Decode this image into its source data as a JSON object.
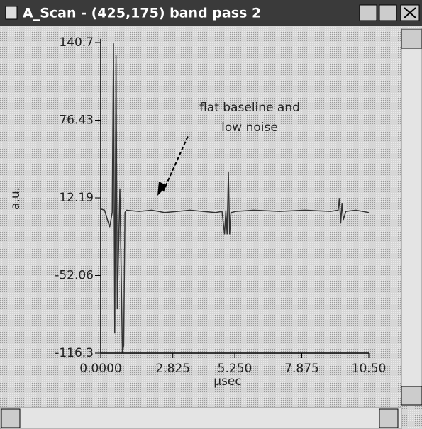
{
  "window": {
    "title": "A_Scan - (425,175)  band pass 2"
  },
  "chart_data": {
    "type": "line",
    "xlabel": "µsec",
    "ylabel": "a.u.",
    "annotation": [
      "flat baseline and",
      "low noise"
    ],
    "x": [
      0,
      0.15,
      0.25,
      0.35,
      0.45,
      0.5,
      0.55,
      0.6,
      0.65,
      0.75,
      0.85,
      0.9,
      0.95,
      1.0,
      1.5,
      2.0,
      2.5,
      3.0,
      3.5,
      4.0,
      4.5,
      4.75,
      4.85,
      4.9,
      4.95,
      5.0,
      5.05,
      5.1,
      5.3,
      6.0,
      7.0,
      8.0,
      9.0,
      9.3,
      9.35,
      9.4,
      9.45,
      9.5,
      9.6,
      10.0,
      10.5
    ],
    "series": [
      {
        "color": "#333333",
        "values": [
          3,
          2,
          -5,
          -12,
          0,
          140,
          -100,
          130,
          -80,
          20,
          -116,
          -110,
          0,
          2,
          1,
          2,
          0,
          1,
          2,
          1,
          0,
          1,
          -18,
          2,
          -18,
          34,
          -18,
          0,
          1,
          2,
          1,
          2,
          1,
          2,
          12,
          -9,
          8,
          -6,
          1,
          2,
          0
        ]
      }
    ],
    "xlim": [
      0,
      10.5
    ],
    "xticks": [
      {
        "value": 0,
        "label": "0.0000"
      },
      2.825,
      {
        "value": 5.25,
        "label": "5.250"
      },
      7.875,
      {
        "value": 10.5,
        "label": "10.50"
      }
    ],
    "ylim": [
      -116.3,
      140.7
    ],
    "yticks": [
      140.7,
      76.43,
      12.19,
      -52.06,
      -116.3
    ]
  }
}
